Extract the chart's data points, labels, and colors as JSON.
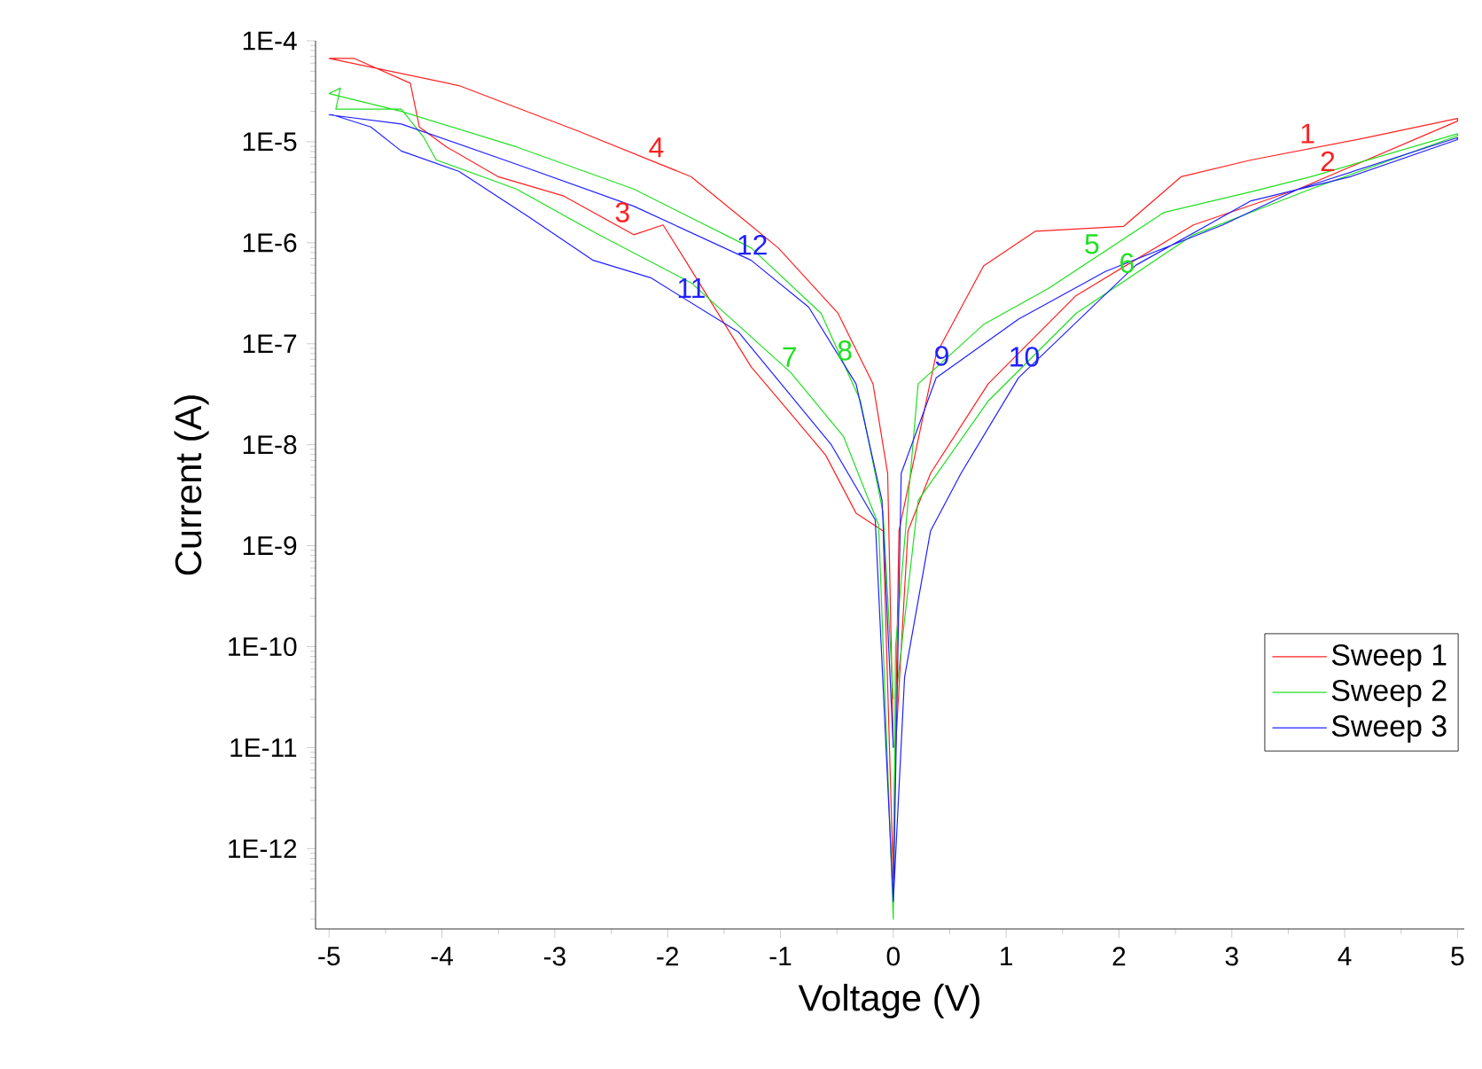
{
  "chart_data": {
    "type": "line",
    "xlabel": "Voltage (V)",
    "ylabel": "Current (A)",
    "log": "y",
    "xlim": [
      -5.12,
      5.06
    ],
    "xticks": [
      -5,
      -4,
      -3,
      -2,
      -1,
      0,
      1,
      2,
      3,
      4,
      5
    ],
    "ylim": [
      1.6e-13,
      0.0001
    ],
    "yticks": [
      {
        "value": 1e-12,
        "label": "1E-12"
      },
      {
        "value": 1e-11,
        "label": "1E-11"
      },
      {
        "value": 1e-10,
        "label": "1E-10"
      },
      {
        "value": 1e-09,
        "label": "1E-9"
      },
      {
        "value": 1e-08,
        "label": "1E-8"
      },
      {
        "value": 1e-07,
        "label": "1E-7"
      },
      {
        "value": 1e-06,
        "label": "1E-6"
      },
      {
        "value": 1e-05,
        "label": "1E-5"
      },
      {
        "value": 0.0001,
        "label": "1E-4"
      }
    ],
    "legend": "bottom right",
    "grid": false,
    "series": [
      {
        "name": "Sweep 1",
        "color": "#ff2020",
        "x": [
          0,
          0.05,
          0.38,
          0.8,
          1.26,
          2.04,
          2.55,
          3.17,
          4.2,
          5,
          5,
          3.59,
          2.66,
          1.62,
          0.84,
          0.33,
          0.13,
          0.02,
          0,
          -0.09,
          -0.33,
          -0.6,
          -0.95,
          -1.26,
          -1.84,
          -2.04,
          -2.3,
          -2.92,
          -3.5,
          -3.96,
          -4.2,
          -4.28,
          -4.78,
          -4.97,
          -5,
          -3.85,
          -2.81,
          -1.79,
          -1.02,
          -0.49,
          -0.18,
          -0.05,
          0
        ],
        "values": [
          7.6e-13,
          1.4e-09,
          7.9e-08,
          5.9e-07,
          1.3e-06,
          1.45e-06,
          4.5e-06,
          6.6e-06,
          1.1e-05,
          1.7e-05,
          1.6e-05,
          3.4e-06,
          1.5e-06,
          3e-07,
          4e-08,
          5.2e-09,
          1.4e-09,
          1e-11,
          5e-13,
          1.4e-09,
          2.1e-09,
          7.9e-09,
          2.3e-08,
          5.9e-08,
          6.6e-07,
          1.5e-06,
          1.2e-06,
          2.9e-06,
          4.5e-06,
          8.9e-06,
          1.4e-05,
          3.8e-05,
          6.7e-05,
          6.7e-05,
          6.7e-05,
          3.6e-05,
          1.3e-05,
          4.5e-06,
          8.9e-07,
          2e-07,
          4e-08,
          5.2e-09,
          1e-11
        ]
      },
      {
        "name": "Sweep 2",
        "color": "#20e020",
        "x": [
          0,
          0.02,
          0.22,
          0.8,
          1.37,
          2.4,
          3.17,
          3.7,
          5,
          5,
          3.7,
          2.66,
          1.62,
          0.84,
          0.22,
          0.02,
          0,
          -0.13,
          -0.44,
          -0.91,
          -1.79,
          -2.61,
          -3.34,
          -4.05,
          -4.16,
          -4.36,
          -4.94,
          -4.9,
          -5,
          -4.36,
          -3.34,
          -2.3,
          -1.26,
          -0.64,
          -0.29,
          -0.09,
          0
        ],
        "values": [
          2e-13,
          1e-10,
          4e-08,
          1.55e-07,
          3.5e-07,
          2e-06,
          3.2e-06,
          4.5e-06,
          1.2e-05,
          1.15e-05,
          3.4e-06,
          1.2e-06,
          2e-07,
          2.7e-08,
          2.8e-09,
          3e-11,
          2e-13,
          1.6e-09,
          1.2e-08,
          5.2e-08,
          4e-07,
          1.2e-06,
          3.4e-06,
          6.6e-06,
          1.1e-05,
          2.1e-05,
          2.1e-05,
          3.4e-05,
          3e-05,
          2e-05,
          8.9e-06,
          3.4e-06,
          8.9e-07,
          2e-07,
          2.7e-08,
          2.1e-09,
          3e-11
        ]
      },
      {
        "name": "Sweep 3",
        "color": "#2020ff",
        "x": [
          0,
          0.07,
          0.38,
          1.11,
          1.88,
          2.92,
          3.59,
          5,
          5,
          4.05,
          3.17,
          2.15,
          1.11,
          0.6,
          0.33,
          0.1,
          0,
          -0.16,
          -0.55,
          -1.37,
          -2.15,
          -2.66,
          -3.23,
          -3.85,
          -4.36,
          -4.63,
          -4.97,
          -5,
          -4.36,
          -3.34,
          -2.3,
          -1.26,
          -0.75,
          -0.33,
          -0.1,
          0
        ],
        "values": [
          3e-13,
          5.2e-09,
          4.6e-08,
          1.75e-07,
          5.2e-07,
          1.5e-06,
          3.4e-06,
          1.1e-05,
          1.05e-05,
          4.5e-06,
          2.6e-06,
          6e-07,
          4.6e-08,
          5.2e-09,
          1.4e-09,
          5e-11,
          3e-13,
          1.8e-09,
          1e-08,
          1.3e-07,
          4.5e-07,
          6.7e-07,
          1.8e-06,
          5.1e-06,
          8.1e-06,
          1.4e-05,
          1.85e-05,
          1.85e-05,
          1.5e-05,
          6e-06,
          2.3e-06,
          6.7e-07,
          2.3e-07,
          4e-08,
          2.8e-09,
          1e-11
        ]
      }
    ],
    "annotations": [
      {
        "text": "1",
        "x": 3.67,
        "y": 8.5e-06
      },
      {
        "text": "2",
        "x": 3.85,
        "y": 4.5e-06
      },
      {
        "text": "3",
        "x": -2.4,
        "y": 1.4e-06
      },
      {
        "text": "4",
        "x": -2.1,
        "y": 6.2e-06
      },
      {
        "text": "5",
        "x": 1.76,
        "y": 6.8e-07
      },
      {
        "text": "6",
        "x": 2.07,
        "y": 4.4e-07
      },
      {
        "text": "7",
        "x": -0.92,
        "y": 5.2e-08
      },
      {
        "text": "8",
        "x": -0.43,
        "y": 6e-08
      },
      {
        "text": "9",
        "x": 0.43,
        "y": 5.3e-08
      },
      {
        "text": "10",
        "x": 1.16,
        "y": 5.2e-08
      },
      {
        "text": "11",
        "x": -1.79,
        "y": 2.5e-07
      },
      {
        "text": "12",
        "x": -1.25,
        "y": 6.7e-07
      }
    ]
  }
}
